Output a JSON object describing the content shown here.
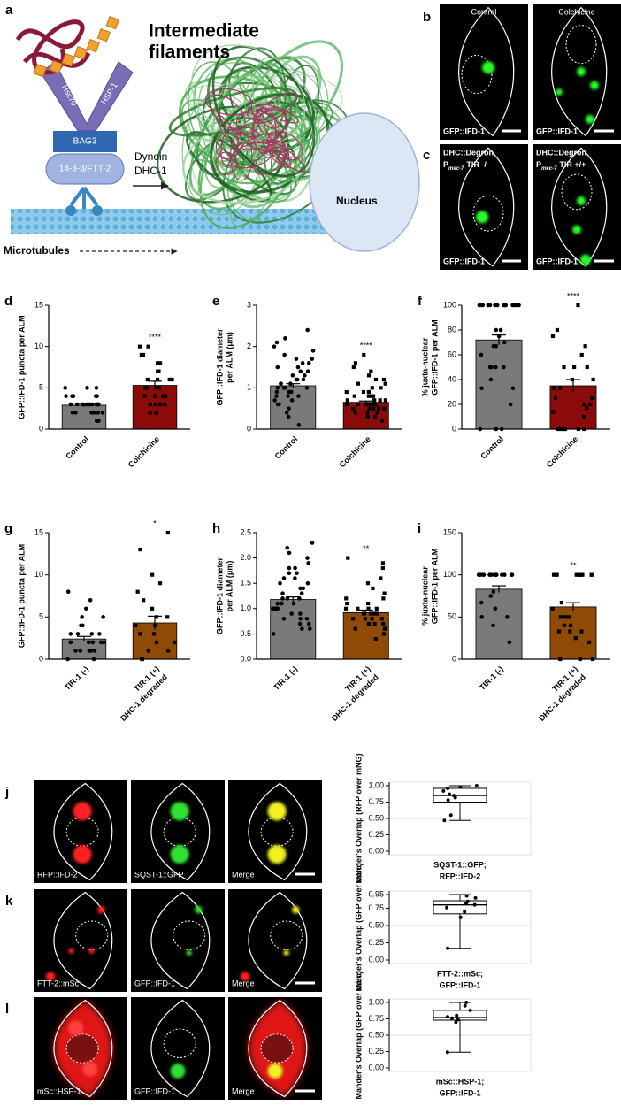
{
  "diagram": {
    "label": "a",
    "title": [
      "Intermediate",
      "filaments"
    ],
    "proteins": [
      "Hsc70",
      "HSP-1",
      "BAG3",
      "14-3-3/FTT-2"
    ],
    "motor": [
      "Dynein",
      "DHC-1"
    ],
    "nucleus": "Nucleus",
    "track": "Microtubules"
  },
  "images": [
    {
      "label": "b",
      "panels": [
        {
          "title": "Control",
          "channel": "GFP::IFD-1"
        },
        {
          "title": "Colchicine",
          "channel": "GFP::IFD-1"
        }
      ]
    },
    {
      "label": "c",
      "panels": [
        {
          "line1": "DHC::Degron",
          "promoter": "P",
          "subscript": "mec-7",
          "genotype": "TIR -/-",
          "channel": "GFP::IFD-1"
        },
        {
          "line1": "DHC::Degron",
          "promoter": "P",
          "subscript": "mec-7",
          "genotype": "TIR +/+",
          "channel": "GFP::IFD-1"
        }
      ]
    },
    {
      "label": "j",
      "channels": [
        "RFP::IFD-2",
        "SQST-1::GFP",
        "Merge"
      ]
    },
    {
      "label": "k",
      "channels": [
        "FTT-2::mSc",
        "GFP::IFD-1",
        "Merge"
      ]
    },
    {
      "label": "l",
      "channels": [
        "mSc::HSP-1",
        "GFP::IFD-1",
        "Merge"
      ]
    }
  ],
  "chart_data": [
    {
      "label": "d",
      "type": "bar",
      "ylabel": [
        "GFP::IFD-1 puncta per ALM"
      ],
      "categories": [
        [
          "Control"
        ],
        [
          "Colchicine"
        ]
      ],
      "values": [
        2.9,
        5.3
      ],
      "errors": [
        0.2,
        0.5
      ],
      "colors": [
        "#7a7a7a",
        "#8b0a0a"
      ],
      "annotation": "****",
      "points": [
        [
          1,
          1,
          2,
          2,
          2,
          2,
          2,
          3,
          3,
          3,
          3,
          3,
          3,
          3,
          3,
          4,
          4,
          4,
          4,
          4,
          5,
          5,
          5,
          3,
          2,
          3,
          4,
          2,
          3,
          3
        ],
        [
          2,
          2,
          3,
          3,
          3,
          4,
          4,
          4,
          4,
          5,
          5,
          5,
          5,
          6,
          6,
          6,
          7,
          7,
          8,
          8,
          9,
          9,
          10,
          10,
          3,
          6
        ]
      ],
      "ylim": [
        0,
        15
      ],
      "yticks": [
        0,
        5,
        10,
        15
      ]
    },
    {
      "label": "e",
      "type": "bar",
      "ylabel": [
        "GFP::IFD-1 diameter",
        "per ALM (μm)"
      ],
      "categories": [
        [
          "Control"
        ],
        [
          "Colchicine"
        ]
      ],
      "values": [
        1.05,
        0.65
      ],
      "errors": [
        0.05,
        0.03
      ],
      "colors": [
        "#7a7a7a",
        "#8b0a0a"
      ],
      "annotation": "****",
      "points": [
        [
          0.1,
          0.3,
          0.4,
          0.5,
          0.6,
          0.6,
          0.7,
          0.7,
          0.8,
          0.8,
          0.8,
          0.9,
          0.9,
          0.9,
          1.0,
          1.0,
          1.0,
          1.0,
          1.1,
          1.1,
          1.1,
          1.2,
          1.2,
          1.2,
          1.3,
          1.3,
          1.4,
          1.4,
          1.5,
          1.5,
          1.6,
          1.6,
          1.7,
          1.7,
          1.8,
          1.9,
          2.0,
          2.1,
          2.2,
          2.4
        ],
        [
          0.2,
          0.3,
          0.3,
          0.4,
          0.4,
          0.4,
          0.5,
          0.5,
          0.5,
          0.5,
          0.5,
          0.6,
          0.6,
          0.6,
          0.6,
          0.6,
          0.6,
          0.7,
          0.7,
          0.7,
          0.7,
          0.7,
          0.8,
          0.8,
          0.8,
          0.8,
          0.9,
          0.9,
          0.9,
          1.0,
          1.0,
          1.1,
          1.1,
          1.2,
          1.2,
          1.3,
          1.4,
          1.5,
          1.6,
          1.8
        ]
      ],
      "ylim": [
        0,
        3
      ],
      "yticks": [
        0,
        1,
        2,
        3
      ]
    },
    {
      "label": "f",
      "type": "bar",
      "ylabel": [
        "% juxta-nuclear",
        "GFP::IFD-1 per ALM"
      ],
      "categories": [
        [
          "Control"
        ],
        [
          "Colchicine"
        ]
      ],
      "values": [
        72,
        35
      ],
      "errors": [
        4,
        5
      ],
      "colors": [
        "#7a7a7a",
        "#8b0a0a"
      ],
      "annotation": "****",
      "points": [
        [
          0,
          0,
          0,
          20,
          33,
          33,
          40,
          50,
          50,
          50,
          50,
          60,
          67,
          67,
          70,
          75,
          80,
          80,
          100,
          100,
          100,
          100,
          100,
          100,
          100,
          100,
          100,
          100,
          100,
          100,
          100,
          100,
          100,
          100
        ],
        [
          0,
          0,
          0,
          0,
          0,
          0,
          10,
          14,
          17,
          20,
          20,
          25,
          25,
          33,
          33,
          40,
          40,
          50,
          50,
          50,
          60,
          67,
          75,
          80,
          100
        ]
      ],
      "ylim": [
        0,
        100
      ],
      "yticks": [
        0,
        20,
        40,
        60,
        80,
        100
      ]
    },
    {
      "label": "g",
      "type": "bar",
      "ylabel": [
        "GFP::IFD-1 puncta per ALM"
      ],
      "categories": [
        [
          "TIR-1 (-)"
        ],
        [
          "TIR-1 (+)",
          "DHC-1 degraded"
        ]
      ],
      "values": [
        2.4,
        4.3
      ],
      "errors": [
        0.3,
        0.8
      ],
      "colors": [
        "#7a7a7a",
        "#8f4a06"
      ],
      "annotation": "*",
      "points": [
        [
          0,
          0,
          1,
          1,
          1,
          1,
          1,
          2,
          2,
          2,
          2,
          2,
          2,
          3,
          3,
          3,
          3,
          4,
          4,
          5,
          5,
          6,
          7,
          8
        ],
        [
          0,
          0,
          1,
          1,
          2,
          2,
          3,
          3,
          4,
          4,
          5,
          5,
          6,
          7,
          8,
          9,
          10,
          13,
          15
        ]
      ],
      "ylim": [
        0,
        15
      ],
      "yticks": [
        0,
        5,
        10,
        15
      ]
    },
    {
      "label": "h",
      "type": "bar",
      "ylabel": [
        "GFP::IFD-1 diameter",
        "per ALM (μm)"
      ],
      "categories": [
        [
          "TIR-1 (-)"
        ],
        [
          "TIR-1 (+)",
          "DHC-1 degraded"
        ]
      ],
      "values": [
        1.18,
        0.92
      ],
      "errors": [
        0.05,
        0.05
      ],
      "colors": [
        "#7a7a7a",
        "#8f4a06"
      ],
      "annotation": "**",
      "points": [
        [
          0.5,
          0.6,
          0.6,
          0.7,
          0.7,
          0.8,
          0.8,
          0.8,
          0.9,
          0.9,
          1.0,
          1.0,
          1.0,
          1.0,
          1.1,
          1.1,
          1.1,
          1.2,
          1.2,
          1.2,
          1.3,
          1.3,
          1.4,
          1.4,
          1.5,
          1.5,
          1.6,
          1.6,
          1.7,
          1.7,
          1.8,
          1.8,
          1.9,
          2.0,
          2.1,
          2.2,
          2.3
        ],
        [
          0.4,
          0.5,
          0.6,
          0.6,
          0.7,
          0.7,
          0.7,
          0.8,
          0.8,
          0.8,
          0.8,
          0.9,
          0.9,
          0.9,
          0.9,
          0.9,
          1.0,
          1.0,
          1.0,
          1.0,
          1.1,
          1.1,
          1.2,
          1.2,
          1.3,
          1.4,
          1.5,
          1.6,
          1.8,
          1.9,
          2.0
        ]
      ],
      "ylim": [
        0,
        2.5
      ],
      "yticks": [
        {
          "value": 0,
          "label": "0.0"
        },
        0.5,
        {
          "value": 1,
          "label": "1.0"
        },
        1.5,
        {
          "value": 2,
          "label": "2.0"
        },
        2.5
      ]
    },
    {
      "label": "i",
      "type": "bar",
      "ylabel": [
        "% juxta-nuclear",
        "GFP::IFD-1 per ALM"
      ],
      "categories": [
        [
          "TIR-1 (-)"
        ],
        [
          "TIR-1 (+)",
          "DHC-1 degraded"
        ]
      ],
      "values": [
        83,
        62
      ],
      "errors": [
        4,
        5
      ],
      "colors": [
        "#7a7a7a",
        "#8f4a06"
      ],
      "annotation": "**",
      "points": [
        [
          20,
          40,
          50,
          50,
          60,
          67,
          75,
          80,
          100,
          100,
          100,
          100,
          100,
          100,
          100,
          100,
          100,
          100,
          100,
          100,
          100,
          100,
          100,
          100
        ],
        [
          0,
          0,
          0,
          20,
          25,
          33,
          33,
          33,
          40,
          40,
          50,
          50,
          50,
          60,
          67,
          100,
          100,
          100,
          100,
          100,
          100,
          100,
          100,
          100,
          100,
          100
        ]
      ],
      "ylim": [
        0,
        150
      ],
      "yticks": [
        0,
        50,
        100,
        150
      ]
    },
    {
      "type": "box",
      "ylabel": [
        "Mander's Overlap (RFP over mNG)"
      ],
      "categories": [
        [
          "SQST-1::GFP;",
          "RFP::IFD-2"
        ]
      ],
      "min": 0.47,
      "q1": 0.75,
      "median": 0.85,
      "q3": 0.96,
      "max": 1.0,
      "reference": 0.5,
      "points": [
        0.47,
        0.55,
        0.78,
        0.82,
        0.85,
        0.87,
        0.92,
        0.96,
        0.98,
        1.0
      ],
      "ylim": [
        0,
        1
      ],
      "yticks": [
        {
          "value": 0,
          "label": "0.00"
        },
        {
          "value": 0.25,
          "label": "0.25"
        },
        {
          "value": 0.5,
          "label": "0.50"
        },
        {
          "value": 0.75,
          "label": "0.75"
        },
        {
          "value": 1,
          "label": "1.00"
        }
      ]
    },
    {
      "type": "box",
      "ylabel": [
        "Mander's Overlap (GFP over mSc)"
      ],
      "categories": [
        [
          "FTT-2::mSc;",
          "GFP::IFD-1"
        ]
      ],
      "min": 0.17,
      "q1": 0.67,
      "median": 0.8,
      "q3": 0.86,
      "max": 0.95,
      "reference": 0.5,
      "points": [
        0.17,
        0.62,
        0.7,
        0.76,
        0.8,
        0.82,
        0.85,
        0.9,
        0.93
      ],
      "ylim": [
        0,
        0.95
      ],
      "yticks": [
        {
          "value": 0,
          "label": "0.00"
        },
        {
          "value": 0.25,
          "label": "0.25"
        },
        {
          "value": 0.5,
          "label": "0.50"
        },
        {
          "value": 0.75,
          "label": "0.75"
        },
        0.95
      ]
    },
    {
      "type": "box",
      "ylabel": [
        "Mander's Overlap (GFP over mSc)"
      ],
      "categories": [
        [
          "mSc::HSP-1;",
          "GFP::IFD-1"
        ]
      ],
      "min": 0.24,
      "q1": 0.73,
      "median": 0.77,
      "q3": 0.88,
      "max": 1.0,
      "reference": 0.5,
      "points": [
        0.24,
        0.7,
        0.74,
        0.76,
        0.78,
        0.8,
        0.88,
        0.95,
        1.0
      ],
      "ylim": [
        0,
        1
      ],
      "yticks": [
        {
          "value": 0,
          "label": "0.00"
        },
        {
          "value": 0.25,
          "label": "0.25"
        },
        {
          "value": 0.5,
          "label": "0.50"
        },
        {
          "value": 0.75,
          "label": "0.75"
        },
        {
          "value": 1,
          "label": "1.00"
        }
      ]
    }
  ]
}
